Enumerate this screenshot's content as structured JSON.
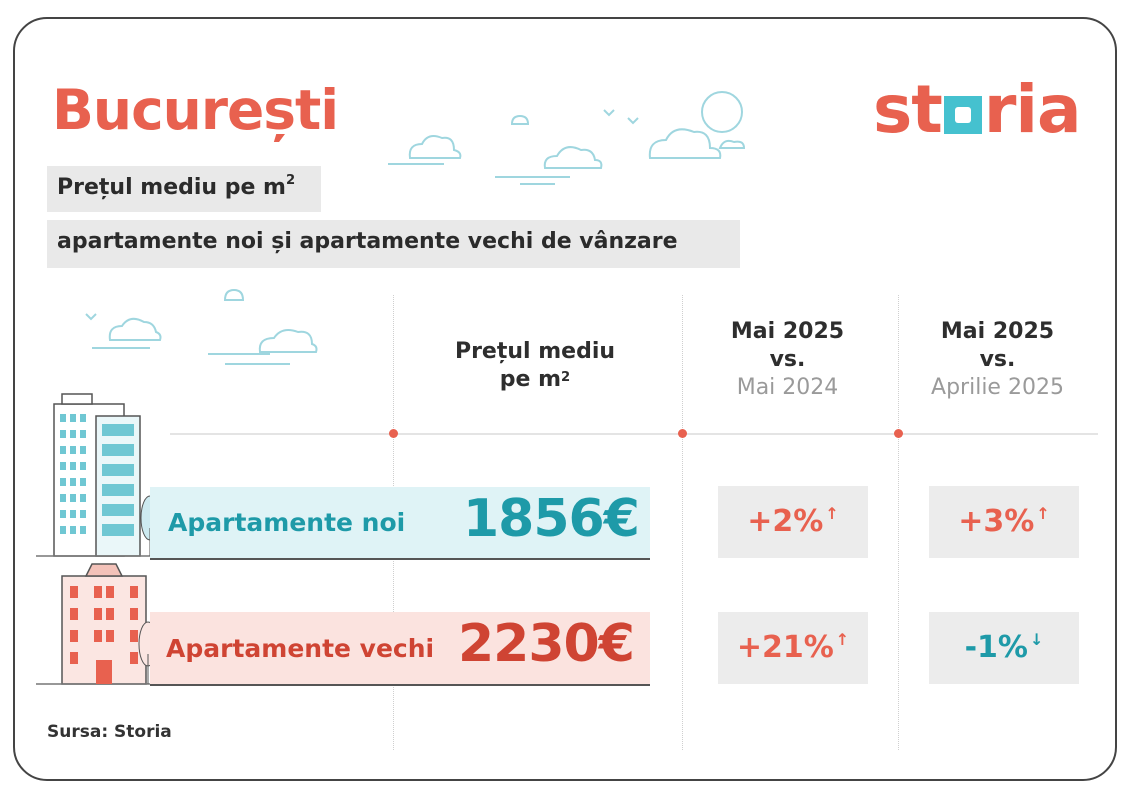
{
  "title": "București",
  "subtitle_line1": "Prețul mediu pe m",
  "subtitle_line1_sup": "2",
  "subtitle_line2": "apartamente noi și apartamente vechi de vânzare",
  "logo": {
    "pre": "st",
    "post": "ria"
  },
  "columns": {
    "price_line1": "Prețul mediu",
    "price_line2": "pe m",
    "price_sup": "2",
    "yoy_line1": "Mai 2025",
    "yoy_line2": "vs.",
    "yoy_line3": "Mai 2024",
    "mom_line1": "Mai 2025",
    "mom_line2": "vs.",
    "mom_line3": "Aprilie 2025"
  },
  "rows": [
    {
      "label": "Apartamente noi",
      "price": "1856€",
      "yoy": "+2%",
      "yoy_arrow": "↑",
      "mom": "+3%",
      "mom_arrow": "↑"
    },
    {
      "label": "Apartamente vechi",
      "price": "2230€",
      "yoy": "+21%",
      "yoy_arrow": "↑",
      "mom": "-1%",
      "mom_arrow": "↓"
    }
  ],
  "source": "Sursa: Storia",
  "colors": {
    "accent": "#e8614f",
    "teal": "#45c1cf",
    "teal_text": "#1e9aa8",
    "teal_band": "#dff3f6",
    "red_band": "#fbe3df",
    "red_text": "#cf4433",
    "grey_box": "#ececec"
  }
}
